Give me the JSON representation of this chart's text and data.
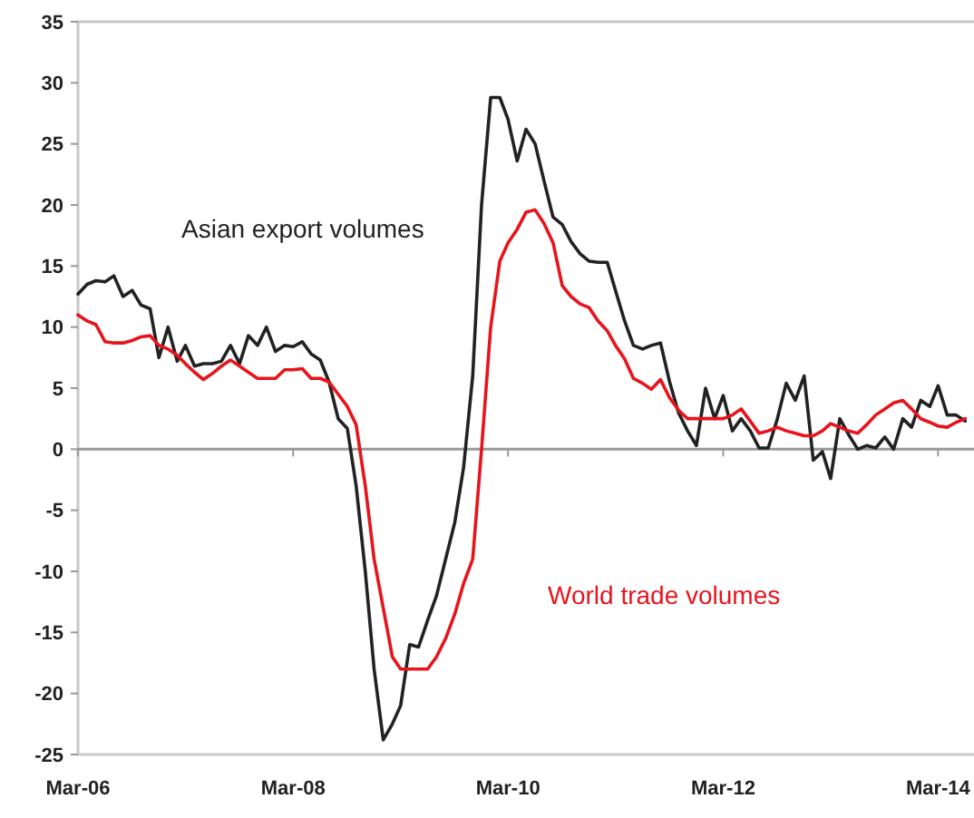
{
  "chart_data": {
    "type": "line",
    "x": [
      "2006-03",
      "2006-04",
      "2006-05",
      "2006-06",
      "2006-07",
      "2006-08",
      "2006-09",
      "2006-10",
      "2006-11",
      "2006-12",
      "2007-01",
      "2007-02",
      "2007-03",
      "2007-04",
      "2007-05",
      "2007-06",
      "2007-07",
      "2007-08",
      "2007-09",
      "2007-10",
      "2007-11",
      "2007-12",
      "2008-01",
      "2008-02",
      "2008-03",
      "2008-04",
      "2008-05",
      "2008-06",
      "2008-07",
      "2008-08",
      "2008-09",
      "2008-10",
      "2008-11",
      "2008-12",
      "2009-01",
      "2009-02",
      "2009-03",
      "2009-04",
      "2009-05",
      "2009-06",
      "2009-07",
      "2009-08",
      "2009-09",
      "2009-10",
      "2009-11",
      "2009-12",
      "2010-01",
      "2010-02",
      "2010-03",
      "2010-04",
      "2010-05",
      "2010-06",
      "2010-07",
      "2010-08",
      "2010-09",
      "2010-10",
      "2010-11",
      "2010-12",
      "2011-01",
      "2011-02",
      "2011-03",
      "2011-04",
      "2011-05",
      "2011-06",
      "2011-07",
      "2011-08",
      "2011-09",
      "2011-10",
      "2011-11",
      "2011-12",
      "2012-01",
      "2012-02",
      "2012-03",
      "2012-04",
      "2012-05",
      "2012-06",
      "2012-07",
      "2012-08",
      "2012-09",
      "2012-10",
      "2012-11",
      "2012-12",
      "2013-01",
      "2013-02",
      "2013-03",
      "2013-04",
      "2013-05",
      "2013-06",
      "2013-07",
      "2013-08",
      "2013-09",
      "2013-10",
      "2013-11",
      "2013-12",
      "2014-01",
      "2014-02",
      "2014-03",
      "2014-04",
      "2014-05",
      "2014-06"
    ],
    "series": [
      {
        "name": "Asian export volumes",
        "color": "#222222",
        "values": [
          12.7,
          13.5,
          13.8,
          13.7,
          14.2,
          12.5,
          13,
          11.8,
          11.5,
          7.5,
          10,
          7.2,
          8.5,
          6.8,
          7,
          7,
          7.2,
          8.5,
          7,
          9.3,
          8.5,
          10,
          8,
          8.5,
          8.4,
          8.8,
          7.8,
          7.3,
          5.5,
          2.5,
          1.7,
          -3,
          -10,
          -18,
          -23.8,
          -22.5,
          -21,
          -16,
          -16.2,
          -14,
          -12,
          -9,
          -6,
          -1.5,
          6,
          20,
          28.8,
          28.8,
          27,
          23.6,
          26.2,
          25,
          22,
          19,
          18.4,
          17,
          16,
          15.4,
          15.3,
          15.3,
          13,
          10.5,
          8.5,
          8.2,
          8.5,
          8.7,
          5.5,
          3,
          1.5,
          0.3,
          5,
          2.5,
          4.4,
          1.5,
          2.5,
          1.5,
          0.1,
          0.1,
          2.5,
          5.4,
          4,
          6,
          -0.9,
          -0.2,
          -2.4,
          2.5,
          1.2,
          0,
          0.3,
          0.1,
          1,
          0,
          2.5,
          1.8,
          4,
          3.5,
          5.2,
          2.8,
          2.8,
          2.3
        ]
      },
      {
        "name": "World trade volumes",
        "color": "#e8141c",
        "values": [
          11,
          10.5,
          10.2,
          8.8,
          8.7,
          8.7,
          8.9,
          9.2,
          9.3,
          8.5,
          8.2,
          7.7,
          7,
          6.3,
          5.7,
          6.2,
          6.8,
          7.3,
          6.8,
          6.3,
          5.8,
          5.8,
          5.8,
          6.5,
          6.5,
          6.6,
          5.8,
          5.8,
          5.5,
          4.5,
          3.5,
          2,
          -3,
          -9,
          -13,
          -17,
          -18,
          -18,
          -18,
          -18,
          -17,
          -15.5,
          -13.5,
          -11,
          -9,
          0,
          10,
          15.4,
          16.9,
          18,
          19.4,
          19.6,
          18.5,
          16.9,
          13.4,
          12.5,
          11.9,
          11.6,
          10.5,
          9.7,
          8.5,
          7.4,
          5.8,
          5.4,
          4.9,
          5.7,
          4.2,
          3.2,
          2.5,
          2.5,
          2.5,
          2.5,
          2.5,
          2.8,
          3.3,
          2.3,
          1.3,
          1.5,
          1.8,
          1.5,
          1.3,
          1.1,
          1.1,
          1.5,
          2.1,
          1.8,
          1.5,
          1.3,
          2,
          2.8,
          3.3,
          3.8,
          4,
          3.3,
          2.5,
          2.2,
          1.9,
          1.8,
          2.2,
          2.5
        ]
      }
    ],
    "xlim": [
      "2006-03",
      "2014-07"
    ],
    "xticks": [
      {
        "value": "2006-03",
        "label": "Mar-06"
      },
      {
        "value": "2008-03",
        "label": "Mar-08"
      },
      {
        "value": "2010-03",
        "label": "Mar-10"
      },
      {
        "value": "2012-03",
        "label": "Mar-12"
      },
      {
        "value": "2014-03",
        "label": "Mar-14"
      }
    ],
    "ylim": [
      -25,
      35
    ],
    "yticks": [
      -25,
      -20,
      -15,
      -10,
      -5,
      0,
      5,
      10,
      15,
      20,
      25,
      30,
      35
    ],
    "ref_lines": [
      {
        "axis": "y",
        "value": 0,
        "color": "#999999"
      }
    ],
    "legend": false,
    "marker": "none",
    "line_style": "solid"
  }
}
